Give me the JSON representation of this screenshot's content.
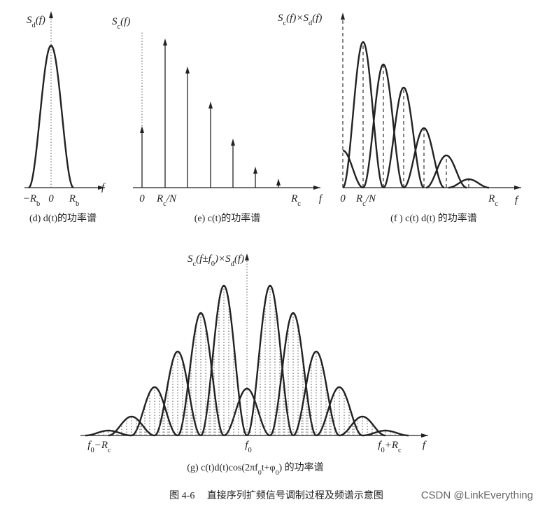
{
  "panels": [
    {
      "y_label": [
        "S",
        "d",
        "(f)"
      ],
      "x_labels": [
        [
          "−R",
          "b"
        ],
        "0",
        [
          "R",
          "b"
        ]
      ],
      "x_axis_label": "f",
      "caption": "(d) d(t)的功率谱"
    },
    {
      "y_label": [
        "S",
        "c",
        "(f)"
      ],
      "x_labels": [
        "0",
        [
          "R",
          "c",
          "/N"
        ],
        [
          "R",
          "c"
        ]
      ],
      "x_axis_label": "f",
      "caption": "(e) c(t)的功率谱"
    },
    {
      "y_label": [
        "S",
        "c",
        "(f)×S",
        "d",
        "(f)"
      ],
      "x_labels": [
        "0",
        [
          "R",
          "c",
          "/N"
        ],
        [
          "R",
          "c"
        ]
      ],
      "x_axis_label": "f",
      "caption": "(f ) c(t) d(t) 的功率谱"
    },
    {
      "y_label": [
        "S",
        "c",
        "(f±f",
        "0",
        ")×S",
        "d",
        "(f)"
      ],
      "x_labels": [
        [
          "f",
          "0",
          "−R",
          "c"
        ],
        [
          "f",
          "0"
        ],
        [
          "f",
          "0",
          "+R",
          "c"
        ]
      ],
      "x_axis_label": "f",
      "caption": [
        "(g) c(t)d(t)cos(2πf",
        "0",
        "t+φ",
        "0",
        ") 的功率谱"
      ]
    }
  ],
  "figure_caption": "图 4-6　 直接序列扩频信号调制过程及频谱示意图",
  "watermark": "CSDN @LinkEverything"
}
